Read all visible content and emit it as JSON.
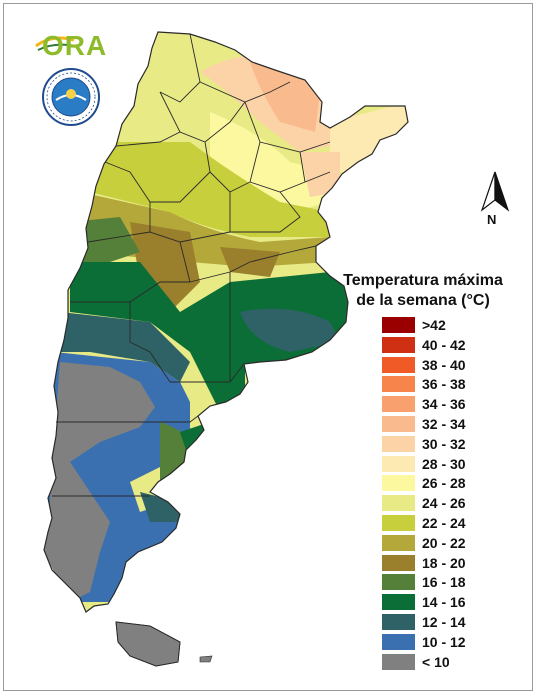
{
  "brand": {
    "ora_logo_text": "ORA",
    "smn_seal_text": "SERVICIO METEOROLÓGICO NACIONAL · ARGENTINA"
  },
  "north_arrow": {
    "label": "N"
  },
  "legend": {
    "title_line1": "Temperatura máxima",
    "title_line2": "de la semana (°C)",
    "classes": [
      {
        "label": ">42",
        "color": "#9b0000"
      },
      {
        "label": "40 - 42",
        "color": "#cf2f12"
      },
      {
        "label": "38 - 40",
        "color": "#ef5a26"
      },
      {
        "label": "36 - 38",
        "color": "#f7844b"
      },
      {
        "label": "34 - 36",
        "color": "#f8a06e"
      },
      {
        "label": "32 - 34",
        "color": "#f9bb8e"
      },
      {
        "label": "30 - 32",
        "color": "#fbd3a7"
      },
      {
        "label": "28 - 30",
        "color": "#fde9b2"
      },
      {
        "label": "26 - 28",
        "color": "#fbf8a0"
      },
      {
        "label": "24 - 26",
        "color": "#e8ea86"
      },
      {
        "label": "22 - 24",
        "color": "#c8cf3c"
      },
      {
        "label": "20 - 22",
        "color": "#b5a83a"
      },
      {
        "label": "18 - 20",
        "color": "#9a7f2c"
      },
      {
        "label": "16 - 18",
        "color": "#55803a"
      },
      {
        "label": "14 - 16",
        "color": "#0b6e37"
      },
      {
        "label": "12 - 14",
        "color": "#2e6266"
      },
      {
        "label": "10 - 12",
        "color": "#3a70b0"
      },
      {
        "label": "< 10",
        "color": "#808080"
      }
    ]
  }
}
